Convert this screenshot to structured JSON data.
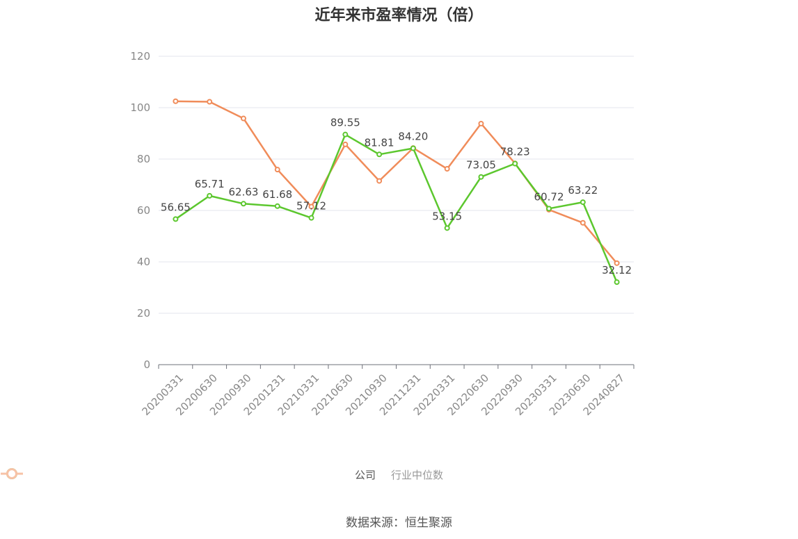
{
  "chart_data": {
    "type": "line",
    "title": "近年来市盈率情况（倍）",
    "categories": [
      "20200331",
      "20200630",
      "20200930",
      "20201231",
      "20210331",
      "20210630",
      "20210930",
      "20211231",
      "20220331",
      "20220630",
      "20220930",
      "20230331",
      "20230630",
      "20240827"
    ],
    "series": [
      {
        "name": "公司",
        "color": "#5cc72e",
        "values": [
          56.65,
          65.71,
          62.63,
          61.68,
          57.12,
          89.55,
          81.81,
          84.2,
          53.15,
          73.05,
          78.23,
          60.72,
          63.22,
          32.12
        ],
        "labels": [
          "56.65",
          "65.71",
          "62.63",
          "61.68",
          "57.12",
          "89.55",
          "81.81",
          "84.20",
          "53.15",
          "73.05",
          "78.23",
          "60.72",
          "63.22",
          "32.12"
        ]
      },
      {
        "name": "行业中位数",
        "color": "#f08c5a",
        "values": [
          102.5,
          102.3,
          95.8,
          75.9,
          61.5,
          85.7,
          71.5,
          84.3,
          76.2,
          93.8,
          78.3,
          60.3,
          55.2,
          39.5
        ]
      }
    ],
    "ylim": [
      0,
      120
    ],
    "yticks": [
      "0",
      "20",
      "40",
      "60",
      "80",
      "100",
      "120"
    ],
    "grid": true,
    "legend_position": "bottom-center"
  },
  "source_text": "数据来源：恒生聚源"
}
